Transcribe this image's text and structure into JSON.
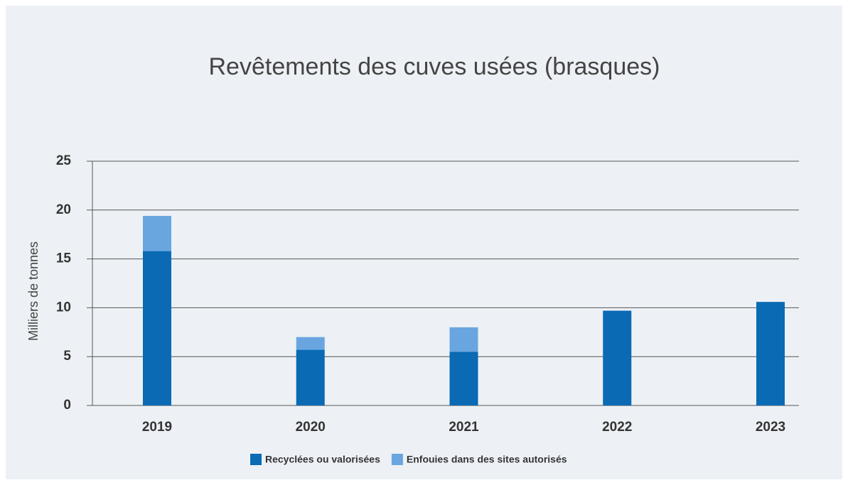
{
  "chart_data": {
    "type": "stacked_bar",
    "title": "Revêtements des cuves usées (brasques)",
    "y_label": "Milliers de tonnes",
    "categories": [
      "2019",
      "2020",
      "2021",
      "2022",
      "2023"
    ],
    "series": [
      {
        "name": "Recyclées ou valorisées",
        "color": "#0a6ab4",
        "values": [
          15.8,
          5.7,
          5.5,
          9.7,
          10.6
        ]
      },
      {
        "name": "Enfouies dans des sites autorisés",
        "color": "#69a6e0",
        "values": [
          3.6,
          1.3,
          2.5,
          0,
          0
        ]
      }
    ],
    "ylim": [
      0,
      25
    ],
    "yticks": [
      0,
      5,
      10,
      15,
      20,
      25
    ],
    "grid": true,
    "legend": "bottom"
  }
}
